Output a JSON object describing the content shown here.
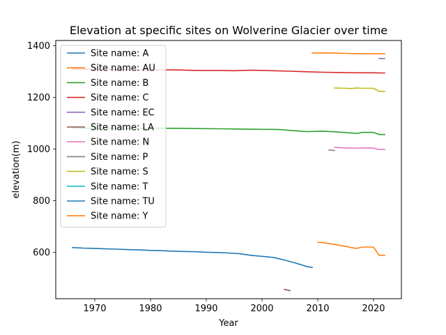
{
  "chart_data": {
    "type": "line",
    "title": "Elevation at specific sites on Wolverine Glacier over time",
    "xlabel": "Year",
    "ylabel": "elevation(m)",
    "xlim": [
      1963,
      2025
    ],
    "ylim": [
      420,
      1420
    ],
    "xticks": [
      1970,
      1980,
      1990,
      2000,
      2010,
      2020
    ],
    "yticks": [
      600,
      800,
      1000,
      1200,
      1400
    ],
    "grid": false,
    "legend_position": "upper-left",
    "series": [
      {
        "name": "Site name: A",
        "color": "#1f77b4",
        "points": [
          [
            1966,
            618
          ],
          [
            1968,
            616
          ],
          [
            1970,
            615
          ],
          [
            1972,
            613
          ],
          [
            1974,
            612
          ],
          [
            1976,
            610
          ],
          [
            1978,
            609
          ],
          [
            1980,
            607
          ],
          [
            1982,
            606
          ],
          [
            1984,
            604
          ],
          [
            1986,
            603
          ],
          [
            1988,
            602
          ],
          [
            1990,
            600
          ],
          [
            1992,
            599
          ],
          [
            1994,
            597
          ],
          [
            1996,
            594
          ],
          [
            1998,
            588
          ],
          [
            2000,
            584
          ],
          [
            2002,
            580
          ],
          [
            2004,
            570
          ],
          [
            2006,
            558
          ],
          [
            2008,
            545
          ],
          [
            2009,
            541
          ]
        ]
      },
      {
        "name": "Site name: AU",
        "color": "#ff7f0e",
        "points": [
          [
            2009,
            1371
          ],
          [
            2011,
            1372
          ],
          [
            2013,
            1371
          ],
          [
            2015,
            1370
          ],
          [
            2017,
            1369
          ],
          [
            2019,
            1369
          ],
          [
            2021,
            1369
          ],
          [
            2022,
            1368
          ]
        ]
      },
      {
        "name": "Site name: B",
        "color": "#2ca02c",
        "points": [
          [
            1966,
            1081
          ],
          [
            1970,
            1080
          ],
          [
            1975,
            1080
          ],
          [
            1980,
            1080
          ],
          [
            1985,
            1080
          ],
          [
            1988,
            1079
          ],
          [
            1992,
            1078
          ],
          [
            1996,
            1077
          ],
          [
            2000,
            1076
          ],
          [
            2003,
            1075
          ],
          [
            2005,
            1072
          ],
          [
            2008,
            1067
          ],
          [
            2011,
            1069
          ],
          [
            2014,
            1065
          ],
          [
            2017,
            1060
          ],
          [
            2018,
            1064
          ],
          [
            2020,
            1064
          ],
          [
            2021,
            1056
          ],
          [
            2022,
            1056
          ]
        ]
      },
      {
        "name": "Site name: C",
        "color": "#d62728",
        "points": [
          [
            1966,
            1310
          ],
          [
            1970,
            1308
          ],
          [
            1975,
            1307
          ],
          [
            1980,
            1306
          ],
          [
            1985,
            1306
          ],
          [
            1988,
            1304
          ],
          [
            1992,
            1304
          ],
          [
            1995,
            1303
          ],
          [
            1998,
            1305
          ],
          [
            2000,
            1304
          ],
          [
            2005,
            1301
          ],
          [
            2008,
            1299
          ],
          [
            2011,
            1297
          ],
          [
            2014,
            1296
          ],
          [
            2017,
            1295
          ],
          [
            2020,
            1295
          ],
          [
            2022,
            1294
          ]
        ]
      },
      {
        "name": "Site name: EC",
        "color": "#9467bd",
        "points": [
          [
            2021,
            1350
          ],
          [
            2022,
            1350
          ]
        ]
      },
      {
        "name": "Site name: LA",
        "color": "#8c564b",
        "points": [
          [
            2004,
            456
          ],
          [
            2005,
            451
          ]
        ]
      },
      {
        "name": "Site name: N",
        "color": "#e377c2",
        "points": [
          [
            2013,
            1006
          ],
          [
            2015,
            1004
          ],
          [
            2017,
            1003
          ],
          [
            2019,
            1004
          ],
          [
            2020,
            1003
          ],
          [
            2021,
            998
          ],
          [
            2022,
            998
          ]
        ]
      },
      {
        "name": "Site name: P",
        "color": "#7f7f7f",
        "points": [
          [
            2012,
            996
          ],
          [
            2013,
            994
          ]
        ]
      },
      {
        "name": "Site name: S",
        "color": "#bcbd22",
        "points": [
          [
            2013,
            1236
          ],
          [
            2015,
            1235
          ],
          [
            2016,
            1234
          ],
          [
            2017,
            1236
          ],
          [
            2018,
            1235
          ],
          [
            2020,
            1235
          ],
          [
            2021,
            1223
          ],
          [
            2022,
            1223
          ]
        ]
      },
      {
        "name": "Site name: T",
        "color": "#17becf",
        "points": []
      },
      {
        "name": "Site name: TU",
        "color": "#1f77b4",
        "points": []
      },
      {
        "name": "Site name: Y",
        "color": "#ff7f0e",
        "points": [
          [
            2010,
            638
          ],
          [
            2011,
            637
          ],
          [
            2013,
            630
          ],
          [
            2015,
            623
          ],
          [
            2016,
            618
          ],
          [
            2017,
            615
          ],
          [
            2018,
            620
          ],
          [
            2020,
            620
          ],
          [
            2021,
            588
          ],
          [
            2022,
            588
          ]
        ]
      }
    ]
  }
}
